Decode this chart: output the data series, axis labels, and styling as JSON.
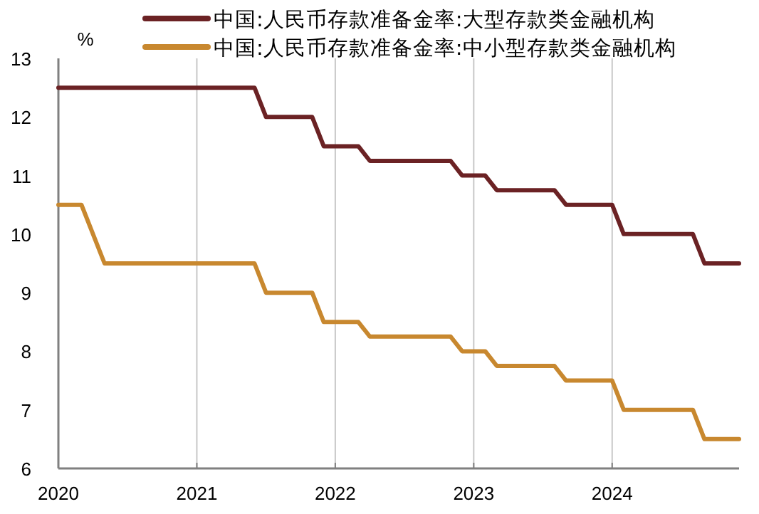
{
  "chart_data": {
    "type": "line",
    "ylabel": "%",
    "xlim": [
      "2020-01",
      "2024-12"
    ],
    "ylim": [
      6,
      13
    ],
    "xticks": [
      {
        "value": "2020-01",
        "label": "2020"
      },
      {
        "value": "2021-01",
        "label": "2021"
      },
      {
        "value": "2022-01",
        "label": "2022"
      },
      {
        "value": "2023-01",
        "label": "2023"
      },
      {
        "value": "2024-01",
        "label": "2024"
      }
    ],
    "yticks": [
      6,
      7,
      8,
      9,
      10,
      11,
      12,
      13
    ],
    "grid": "x",
    "legend": "top",
    "marker": "none",
    "line_style": "solid",
    "series": [
      {
        "name": "中国:人民币存款准备金率:大型存款类金融机构",
        "color": "#6b2224",
        "x": [
          "2020-01",
          "2021-06",
          "2021-07",
          "2021-11",
          "2021-12",
          "2022-03",
          "2022-04",
          "2022-11",
          "2022-12",
          "2023-02",
          "2023-03",
          "2023-08",
          "2023-09",
          "2024-01",
          "2024-02",
          "2024-08",
          "2024-09",
          "2024-12"
        ],
        "values": [
          12.5,
          12.5,
          12,
          12,
          11.5,
          11.5,
          11.25,
          11.25,
          11,
          11,
          10.75,
          10.75,
          10.5,
          10.5,
          10,
          10,
          9.5,
          9.5
        ]
      },
      {
        "name": "中国:人民币存款准备金率:中小型存款类金融机构",
        "color": "#c8882f",
        "x": [
          "2020-01",
          "2020-03",
          "2020-05",
          "2021-06",
          "2021-07",
          "2021-11",
          "2021-12",
          "2022-03",
          "2022-04",
          "2022-11",
          "2022-12",
          "2023-02",
          "2023-03",
          "2023-08",
          "2023-09",
          "2024-01",
          "2024-02",
          "2024-08",
          "2024-09",
          "2024-12"
        ],
        "values": [
          10.5,
          10.5,
          9.5,
          9.5,
          9,
          9,
          8.5,
          8.5,
          8.25,
          8.25,
          8,
          8,
          7.75,
          7.75,
          7.5,
          7.5,
          7,
          7,
          6.5,
          6.5
        ]
      }
    ]
  }
}
